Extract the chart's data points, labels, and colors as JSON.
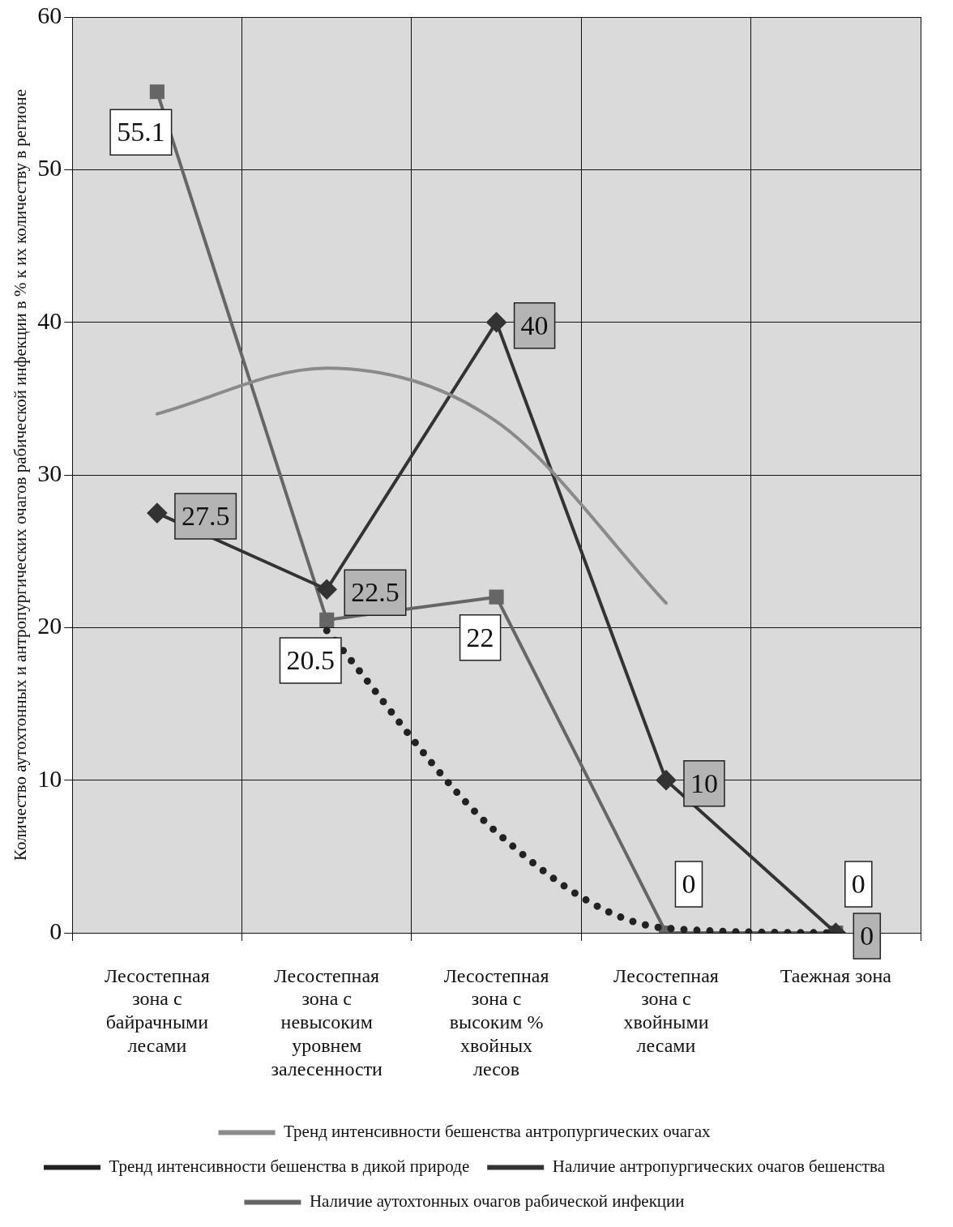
{
  "chart_data": {
    "type": "line",
    "ylabel": "Количество аутохтонных и антропургических очагов рабической инфекции в % к их количеству в регионе",
    "categories": [
      "Лесостепная зона с байрачными лесами",
      "Лесостепная зона с невысоким уровнем залесенности",
      "Лесостепная зона с высоким % хвойных лесов",
      "Лесостепная зона с хвойными лесами",
      "Таежная зона"
    ],
    "series": [
      {
        "name": "Тренд интенсивности бешенства антропургических очагах",
        "type": "line",
        "color": "#8a8a8a",
        "marker": "none",
        "line_style": "solid",
        "values": [
          34,
          37,
          33.5,
          21.6,
          null
        ]
      },
      {
        "name": "Тренд интенсивности бешенства в дикой природе",
        "type": "line",
        "color": "#222222",
        "marker": "none",
        "line_style": "dotted",
        "values": [
          null,
          19.8,
          6.6,
          0.3,
          0
        ]
      },
      {
        "name": "Наличие антропургических очагов бешенства",
        "color": "#333333",
        "marker": "diamond",
        "line_style": "solid",
        "values": [
          27.5,
          22.5,
          40,
          10,
          0
        ],
        "value_labels": [
          "27.5",
          "22.5",
          "40",
          "10",
          "0"
        ]
      },
      {
        "name": "Наличие аутохтонных очагов рабической инфекции",
        "color": "#666666",
        "marker": "square",
        "line_style": "solid",
        "values": [
          55.1,
          20.5,
          22,
          0,
          0
        ],
        "value_labels": [
          "55.1",
          "20.5",
          "22",
          "0",
          "0"
        ]
      }
    ],
    "ylim": [
      0,
      60
    ],
    "yticks": [
      0,
      10,
      20,
      30,
      40,
      50,
      60
    ],
    "grid": true,
    "legend": "bottom"
  }
}
